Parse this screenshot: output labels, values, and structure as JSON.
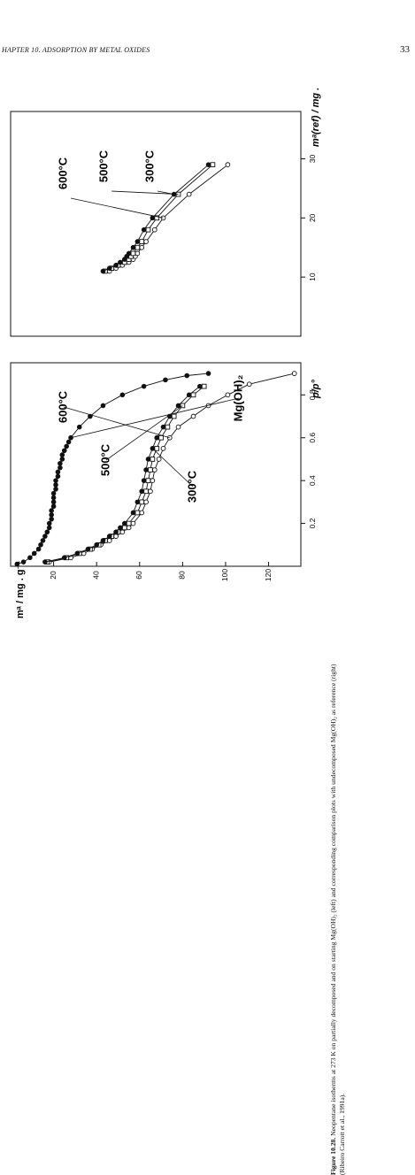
{
  "page": {
    "running_head": "HAPTER 10. ADSORPTION BY METAL OXIDES",
    "page_number": "33"
  },
  "caption": {
    "label": "Figure 10.28.",
    "text": "Neopentane isotherms at 273 K on partially decomposed and on starting Mg(OH)₂ (left) and corresponding comparison plots with undecomposed Mg(OH)₂ as reference (right) (Ribeiro Carrott et al., 1991a)."
  },
  "chart_data": [
    {
      "type": "line",
      "panel": "left",
      "xlabel": "p/p°",
      "ylabel": "mᵃ / mg . g⁻¹",
      "xlim": [
        0,
        0.95
      ],
      "ylim": [
        0,
        135
      ],
      "xticks": [
        "0.2",
        "0.4",
        "0.6",
        "0.8"
      ],
      "xtick_values": [
        0.2,
        0.4,
        0.6,
        0.8
      ],
      "yticks": [
        "20",
        "40",
        "60",
        "80",
        "100",
        "120"
      ],
      "ytick_values": [
        20,
        40,
        60,
        80,
        100,
        120
      ],
      "series": [
        {
          "name": "600°C",
          "marker": "open-circle",
          "x": [
            0.02,
            0.04,
            0.06,
            0.08,
            0.1,
            0.12,
            0.14,
            0.16,
            0.18,
            0.2,
            0.25,
            0.3,
            0.35,
            0.4,
            0.45,
            0.5,
            0.55,
            0.6,
            0.65,
            0.7,
            0.75,
            0.8,
            0.85,
            0.9
          ],
          "y": [
            18,
            28,
            34,
            38,
            42,
            46,
            49,
            52,
            55,
            57,
            61,
            63,
            65,
            66,
            67,
            69,
            71,
            74,
            78,
            85,
            92,
            101,
            111,
            132
          ]
        },
        {
          "name": "500°C",
          "marker": "open-square",
          "x": [
            0.02,
            0.04,
            0.06,
            0.08,
            0.1,
            0.12,
            0.14,
            0.16,
            0.18,
            0.2,
            0.25,
            0.3,
            0.35,
            0.4,
            0.45,
            0.5,
            0.55,
            0.6,
            0.65,
            0.7,
            0.75,
            0.8,
            0.84
          ],
          "y": [
            17,
            26,
            32,
            37,
            41,
            44,
            47,
            50,
            53,
            55,
            59,
            61,
            63,
            64,
            65,
            66,
            68,
            70,
            73,
            76,
            80,
            85,
            90
          ]
        },
        {
          "name": "300°C",
          "marker": "filled-circle",
          "x": [
            0.02,
            0.04,
            0.06,
            0.08,
            0.1,
            0.12,
            0.14,
            0.16,
            0.18,
            0.2,
            0.25,
            0.3,
            0.35,
            0.4,
            0.45,
            0.5,
            0.55,
            0.6,
            0.65,
            0.7,
            0.75,
            0.8,
            0.84
          ],
          "y": [
            16,
            25,
            31,
            36,
            40,
            43,
            46,
            49,
            51,
            53,
            57,
            59,
            61,
            62,
            63,
            64,
            66,
            68,
            71,
            74,
            78,
            83,
            88
          ]
        },
        {
          "name": "Mg(OH)₂",
          "marker": "filled-circle",
          "x": [
            0.01,
            0.02,
            0.04,
            0.06,
            0.08,
            0.1,
            0.12,
            0.14,
            0.16,
            0.18,
            0.2,
            0.22,
            0.24,
            0.26,
            0.28,
            0.3,
            0.32,
            0.34,
            0.36,
            0.38,
            0.4,
            0.42,
            0.44,
            0.46,
            0.48,
            0.5,
            0.52,
            0.54,
            0.56,
            0.58,
            0.6,
            0.65,
            0.7,
            0.75,
            0.8,
            0.84,
            0.87,
            0.89,
            0.9
          ],
          "y": [
            3,
            6,
            9,
            11,
            13,
            14,
            15,
            16,
            17,
            18,
            18,
            19,
            19,
            19,
            20,
            20,
            20,
            20,
            21,
            21,
            21,
            22,
            22,
            23,
            23,
            24,
            24,
            25,
            26,
            27,
            28,
            32,
            37,
            43,
            52,
            62,
            72,
            82,
            92
          ]
        }
      ]
    },
    {
      "type": "scatter",
      "panel": "right",
      "xlabel": "mᵃ(ref) / mg . g⁻¹",
      "xlim": [
        0,
        38
      ],
      "ylim": [
        0,
        135
      ],
      "xticks": [
        "10",
        "20",
        "30"
      ],
      "xtick_values": [
        10,
        20,
        30
      ],
      "series": [
        {
          "name": "600°C",
          "marker": "open-circle",
          "x": [
            11,
            11.5,
            12,
            12.5,
            13,
            13.5,
            14,
            15,
            16,
            18,
            20,
            24,
            29
          ],
          "y": [
            46,
            49,
            52,
            55,
            57,
            58,
            59,
            61,
            63,
            67,
            71,
            83,
            101
          ]
        },
        {
          "name": "500°C",
          "marker": "open-square",
          "x": [
            11,
            11.5,
            12,
            12.5,
            13,
            13.5,
            14,
            15,
            16,
            18,
            20,
            24,
            29
          ],
          "y": [
            44,
            47,
            50,
            53,
            55,
            56,
            57,
            59,
            61,
            64,
            68,
            78,
            94
          ]
        },
        {
          "name": "300°C",
          "marker": "filled-circle",
          "x": [
            11,
            11.5,
            12,
            12.5,
            13,
            13.5,
            14,
            15,
            16,
            18,
            20,
            24,
            29
          ],
          "y": [
            43,
            46,
            49,
            51,
            53,
            54,
            55,
            57,
            59,
            62,
            66,
            76,
            92
          ]
        }
      ]
    }
  ]
}
